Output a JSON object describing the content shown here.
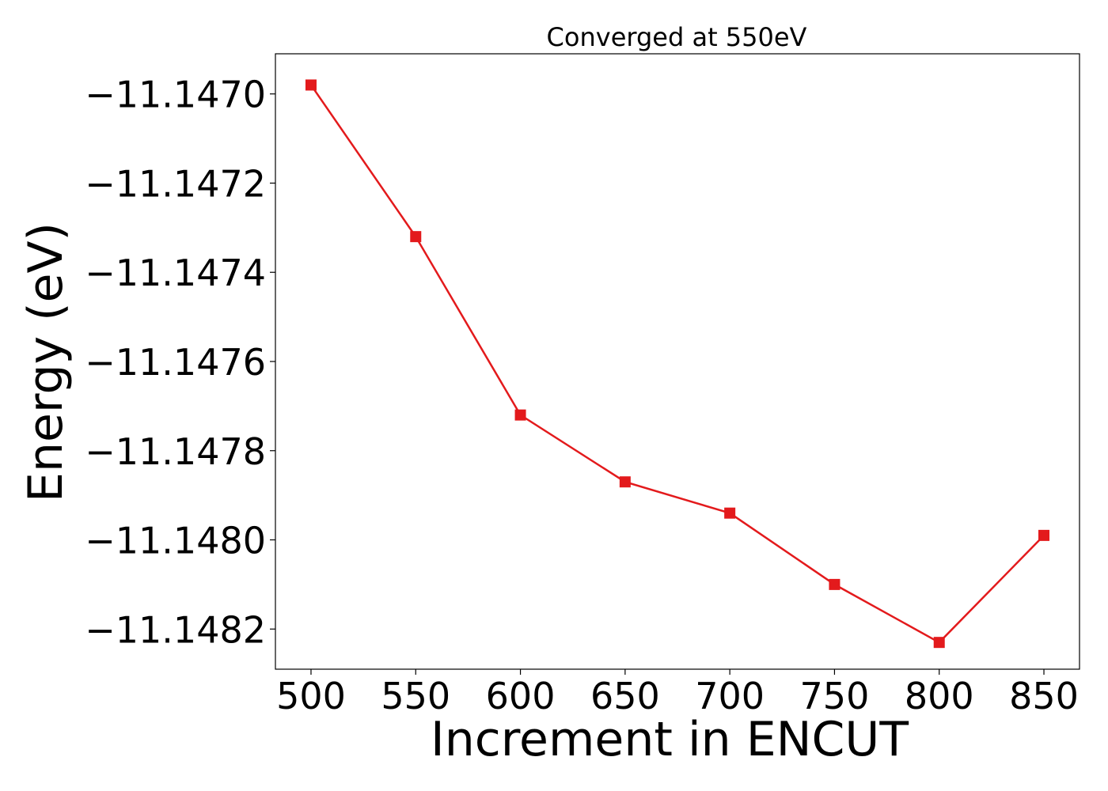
{
  "chart_data": {
    "type": "line",
    "title": "Converged at 550eV",
    "xlabel": "Increment in ENCUT",
    "ylabel": "Energy (eV)",
    "x": [
      500,
      550,
      600,
      650,
      700,
      750,
      800,
      850
    ],
    "series": [
      {
        "values": [
          -11.14698,
          -11.14732,
          -11.14772,
          -11.14787,
          -11.14794,
          -11.1481,
          -11.14823,
          -11.14799
        ],
        "color": "#e31a1c",
        "marker": "square"
      }
    ],
    "xlim": [
      483,
      867
    ],
    "ylim": [
      -11.14829,
      -11.14691
    ],
    "xticks": [
      500,
      550,
      600,
      650,
      700,
      750,
      800,
      850
    ],
    "xtick_labels": [
      "500",
      "550",
      "600",
      "650",
      "700",
      "750",
      "800",
      "850"
    ],
    "yticks": [
      -11.147,
      -11.1472,
      -11.1474,
      -11.1476,
      -11.1478,
      -11.148,
      -11.1482
    ],
    "ytick_labels": [
      "−11.1470",
      "−11.1472",
      "−11.1474",
      "−11.1476",
      "−11.1478",
      "−11.1480",
      "−11.1482"
    ],
    "grid": false,
    "legend": "none"
  }
}
